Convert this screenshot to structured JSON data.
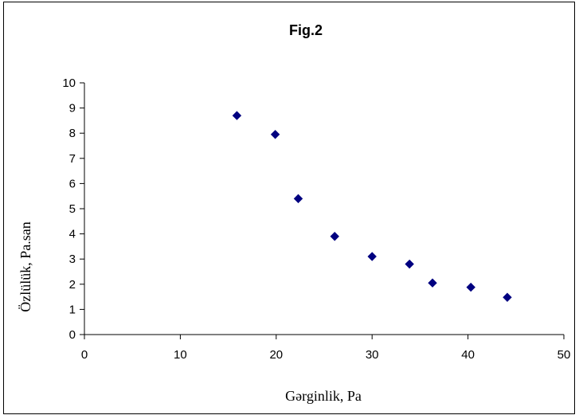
{
  "chart_data": {
    "type": "scatter",
    "title": "Fig.2",
    "xlabel": "Gərginlik, Pa",
    "ylabel": "Özlülük, Pa.san",
    "xlim": [
      0,
      50
    ],
    "ylim": [
      0,
      10
    ],
    "x_ticks": [
      "0",
      "10",
      "20",
      "30",
      "40",
      "50"
    ],
    "y_ticks": [
      "0",
      "1",
      "2",
      "3",
      "4",
      "5",
      "6",
      "7",
      "8",
      "9",
      "10"
    ],
    "grid": false,
    "legend": "none",
    "marker": "diamond",
    "marker_color": "#000080",
    "series": [
      {
        "points": [
          {
            "x": 15.9,
            "y": 8.7
          },
          {
            "x": 19.9,
            "y": 7.95
          },
          {
            "x": 22.3,
            "y": 5.4
          },
          {
            "x": 26.1,
            "y": 3.9
          },
          {
            "x": 30.0,
            "y": 3.1
          },
          {
            "x": 33.9,
            "y": 2.8
          },
          {
            "x": 36.3,
            "y": 2.05
          },
          {
            "x": 40.3,
            "y": 1.88
          },
          {
            "x": 44.1,
            "y": 1.48
          }
        ]
      }
    ]
  }
}
